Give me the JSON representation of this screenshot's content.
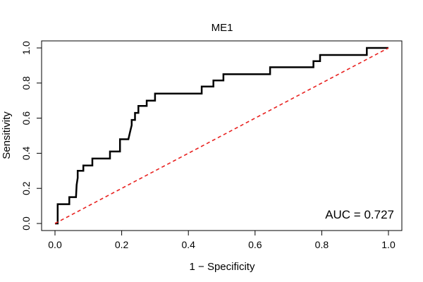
{
  "chart_data": {
    "type": "line",
    "title": "ME1",
    "xlabel": "1 − Specificity",
    "ylabel": "Sensitivity",
    "xlim": [
      0,
      1
    ],
    "ylim": [
      0,
      1
    ],
    "x_ticks": [
      "0.0",
      "0.2",
      "0.4",
      "0.6",
      "0.8",
      "1.0"
    ],
    "y_ticks": [
      "0.0",
      "0.2",
      "0.4",
      "0.6",
      "0.8",
      "1.0"
    ],
    "grid": false,
    "annotation": "AUC = 0.727",
    "colors": {
      "roc": "#000000",
      "reference": "#e8211f"
    },
    "series": [
      {
        "style": "solid",
        "color": "#000000",
        "x": [
          0.0,
          0.0,
          0.008,
          0.008,
          0.043,
          0.043,
          0.063,
          0.065,
          0.068,
          0.068,
          0.085,
          0.085,
          0.112,
          0.112,
          0.165,
          0.165,
          0.195,
          0.195,
          0.22,
          0.225,
          0.23,
          0.23,
          0.24,
          0.24,
          0.25,
          0.25,
          0.275,
          0.275,
          0.3,
          0.3,
          0.44,
          0.44,
          0.475,
          0.475,
          0.505,
          0.505,
          0.645,
          0.645,
          0.775,
          0.775,
          0.795,
          0.795,
          0.935,
          0.935,
          1.0
        ],
        "y": [
          0.0,
          0.0,
          0.0,
          0.11,
          0.11,
          0.15,
          0.15,
          0.22,
          0.26,
          0.3,
          0.3,
          0.33,
          0.33,
          0.37,
          0.37,
          0.41,
          0.41,
          0.48,
          0.48,
          0.52,
          0.56,
          0.59,
          0.59,
          0.63,
          0.63,
          0.67,
          0.67,
          0.7,
          0.7,
          0.74,
          0.74,
          0.78,
          0.78,
          0.815,
          0.815,
          0.85,
          0.85,
          0.89,
          0.89,
          0.925,
          0.925,
          0.96,
          0.96,
          1.0,
          1.0
        ]
      },
      {
        "style": "dashed",
        "color": "#e8211f",
        "x": [
          0,
          1
        ],
        "y": [
          0,
          1
        ]
      }
    ]
  }
}
